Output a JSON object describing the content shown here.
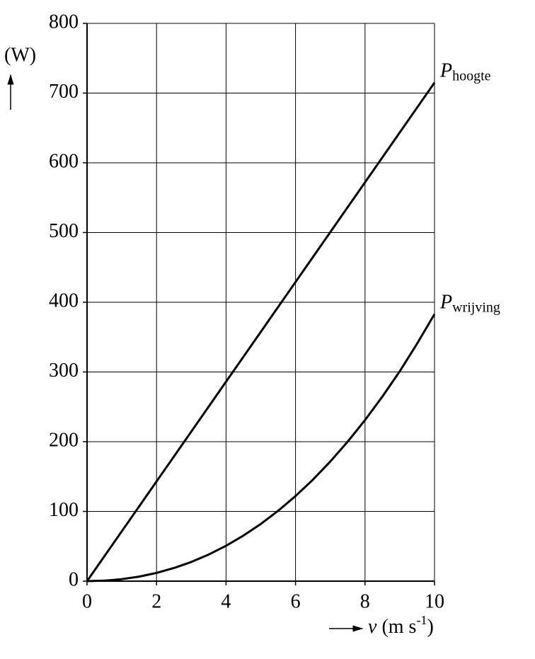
{
  "chart_data": {
    "type": "line",
    "ylabel": "(W)",
    "xlabel_var": "v",
    "xlabel_unit": "(m s",
    "xlabel_exp": "-1",
    "xlabel_close": ")",
    "x": [
      0,
      0.5,
      1,
      1.5,
      2,
      2.5,
      3,
      3.5,
      4,
      4.5,
      5,
      5.5,
      6,
      6.5,
      7,
      7.5,
      8,
      8.5,
      9,
      9.5,
      10
    ],
    "series": [
      {
        "name": "P",
        "subscript": "hoogte",
        "color": "#000000",
        "values": [
          0,
          35.75,
          71.5,
          107.25,
          143,
          178.75,
          214.5,
          250.25,
          286,
          321.75,
          357.5,
          393.25,
          429,
          464.75,
          500.5,
          536.25,
          572,
          607.75,
          643.5,
          679.25,
          715
        ]
      },
      {
        "name": "P",
        "subscript": "wrijving",
        "color": "#000000",
        "values": [
          0,
          0.7,
          2.84,
          6.5,
          11.8,
          18.8,
          27.5,
          38.1,
          50.7,
          65.3,
          82,
          100.9,
          122,
          145.5,
          171.5,
          200,
          231,
          264.7,
          301,
          340.7,
          383
        ]
      }
    ],
    "xlim": [
      0,
      10
    ],
    "xticks": [
      0,
      2,
      4,
      6,
      8,
      10
    ],
    "ylim": [
      0,
      800
    ],
    "yticks": [
      0,
      100,
      200,
      300,
      400,
      500,
      600,
      700,
      800
    ],
    "grid": true
  }
}
